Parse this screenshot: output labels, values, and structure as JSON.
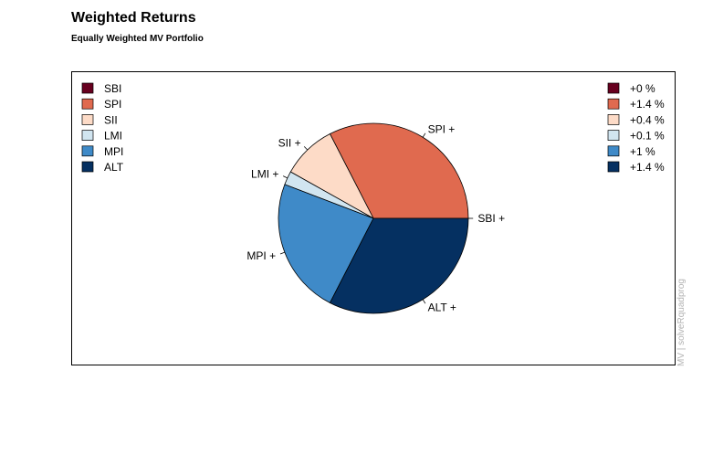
{
  "header": {
    "title": "Weighted Returns",
    "subtitle": "Equally Weighted MV Portfolio"
  },
  "side_note": "MV | solveRquadprog",
  "chart_data": {
    "type": "pie",
    "title": "Weighted Returns",
    "subtitle": "Equally Weighted MV Portfolio",
    "slices": [
      {
        "name": "SBI",
        "label": "SBI +",
        "value": 0.0,
        "legend_value": "+0 %",
        "color": "#67001f"
      },
      {
        "name": "SPI",
        "label": "SPI +",
        "value": 1.4,
        "legend_value": "+1.4 %",
        "color": "#e06a4f"
      },
      {
        "name": "SII",
        "label": "SII +",
        "value": 0.4,
        "legend_value": "+0.4 %",
        "color": "#fddbc7"
      },
      {
        "name": "LMI",
        "label": "LMI +",
        "value": 0.1,
        "legend_value": "+0.1 %",
        "color": "#d1e5f0"
      },
      {
        "name": "MPI",
        "label": "MPI +",
        "value": 1.0,
        "legend_value": "+1 %",
        "color": "#3f8ac8"
      },
      {
        "name": "ALT",
        "label": "ALT +",
        "value": 1.4,
        "legend_value": "+1.4 %",
        "color": "#053061"
      }
    ],
    "start_angle_deg": 0,
    "direction": "counterclockwise",
    "legend_left_placement": "top-left",
    "legend_right_placement": "top-right"
  }
}
